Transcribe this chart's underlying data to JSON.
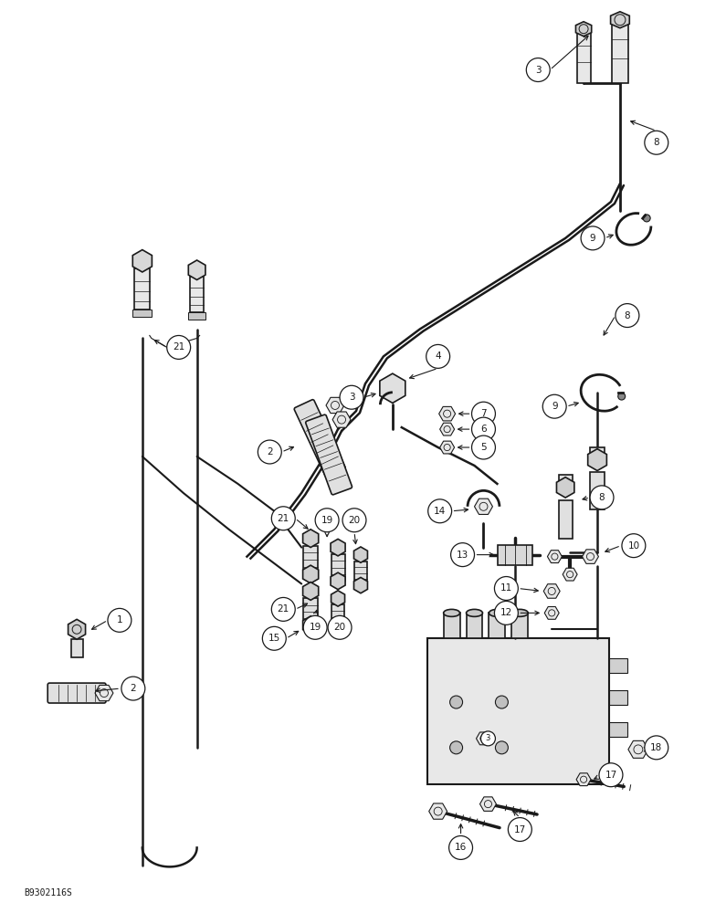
{
  "footer_code": "B9302116S",
  "bg": "#ffffff",
  "lc": "#1a1a1a",
  "figsize": [
    7.72,
    10.0
  ],
  "dpi": 100
}
